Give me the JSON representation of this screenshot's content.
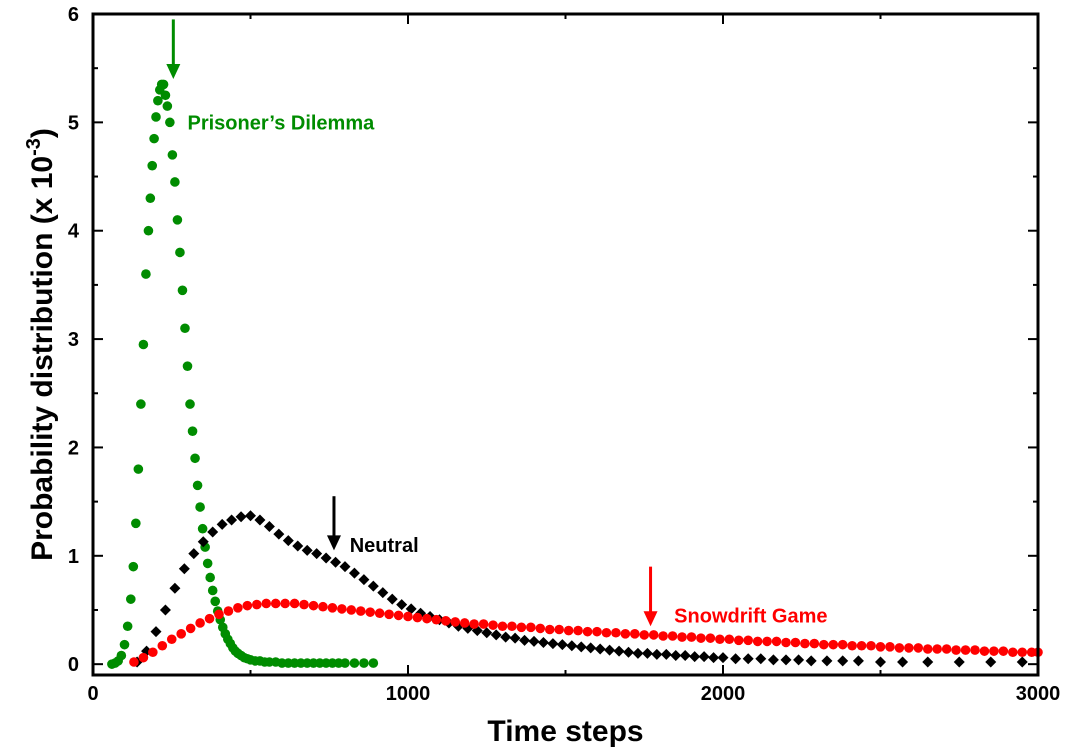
{
  "chart_data": {
    "type": "scatter",
    "title": "",
    "xlabel": "Time steps",
    "ylabel_main": "Probability distribution (x 10",
    "ylabel_exp": "-3",
    "ylabel_close": ")",
    "xlim": [
      0,
      3000
    ],
    "ylim": [
      -0.1,
      6
    ],
    "xticks": [
      0,
      1000,
      2000,
      3000
    ],
    "xtick_labels": [
      "0",
      "1000",
      "2000",
      "3000"
    ],
    "yticks": [
      0,
      1,
      2,
      3,
      4,
      5,
      6
    ],
    "ytick_labels": [
      "0",
      "1",
      "2",
      "3",
      "4",
      "5",
      "6"
    ],
    "grid": false,
    "series": [
      {
        "name": "Prisoner’s Dilemma",
        "marker": "circle",
        "color": "#008c00",
        "points": [
          [
            60,
            0.0
          ],
          [
            70,
            0.01
          ],
          [
            80,
            0.03
          ],
          [
            90,
            0.08
          ],
          [
            100,
            0.18
          ],
          [
            110,
            0.35
          ],
          [
            120,
            0.6
          ],
          [
            128,
            0.9
          ],
          [
            136,
            1.3
          ],
          [
            144,
            1.8
          ],
          [
            152,
            2.4
          ],
          [
            160,
            2.95
          ],
          [
            168,
            3.6
          ],
          [
            176,
            4.0
          ],
          [
            182,
            4.3
          ],
          [
            188,
            4.6
          ],
          [
            194,
            4.85
          ],
          [
            200,
            5.05
          ],
          [
            206,
            5.2
          ],
          [
            212,
            5.3
          ],
          [
            218,
            5.35
          ],
          [
            224,
            5.35
          ],
          [
            230,
            5.25
          ],
          [
            236,
            5.15
          ],
          [
            244,
            5.0
          ],
          [
            252,
            4.7
          ],
          [
            260,
            4.45
          ],
          [
            268,
            4.1
          ],
          [
            276,
            3.8
          ],
          [
            284,
            3.45
          ],
          [
            292,
            3.1
          ],
          [
            300,
            2.75
          ],
          [
            308,
            2.4
          ],
          [
            316,
            2.15
          ],
          [
            324,
            1.9
          ],
          [
            332,
            1.65
          ],
          [
            340,
            1.45
          ],
          [
            348,
            1.25
          ],
          [
            356,
            1.08
          ],
          [
            364,
            0.93
          ],
          [
            372,
            0.8
          ],
          [
            380,
            0.68
          ],
          [
            388,
            0.58
          ],
          [
            396,
            0.49
          ],
          [
            404,
            0.41
          ],
          [
            412,
            0.34
          ],
          [
            420,
            0.28
          ],
          [
            428,
            0.23
          ],
          [
            436,
            0.19
          ],
          [
            444,
            0.15
          ],
          [
            452,
            0.12
          ],
          [
            460,
            0.1
          ],
          [
            470,
            0.08
          ],
          [
            480,
            0.06
          ],
          [
            490,
            0.05
          ],
          [
            500,
            0.04
          ],
          [
            515,
            0.03
          ],
          [
            530,
            0.03
          ],
          [
            545,
            0.02
          ],
          [
            560,
            0.02
          ],
          [
            580,
            0.02
          ],
          [
            600,
            0.01
          ],
          [
            620,
            0.01
          ],
          [
            640,
            0.01
          ],
          [
            660,
            0.01
          ],
          [
            680,
            0.01
          ],
          [
            700,
            0.01
          ],
          [
            720,
            0.01
          ],
          [
            740,
            0.01
          ],
          [
            760,
            0.01
          ],
          [
            780,
            0.01
          ],
          [
            800,
            0.01
          ],
          [
            830,
            0.01
          ],
          [
            860,
            0.01
          ],
          [
            890,
            0.01
          ]
        ]
      },
      {
        "name": "Neutral",
        "marker": "diamond",
        "color": "#000000",
        "points": [
          [
            140,
            0.02
          ],
          [
            170,
            0.12
          ],
          [
            200,
            0.3
          ],
          [
            230,
            0.5
          ],
          [
            260,
            0.7
          ],
          [
            290,
            0.88
          ],
          [
            320,
            1.02
          ],
          [
            350,
            1.13
          ],
          [
            380,
            1.22
          ],
          [
            410,
            1.29
          ],
          [
            440,
            1.33
          ],
          [
            470,
            1.36
          ],
          [
            500,
            1.37
          ],
          [
            530,
            1.33
          ],
          [
            560,
            1.27
          ],
          [
            590,
            1.2
          ],
          [
            620,
            1.14
          ],
          [
            650,
            1.09
          ],
          [
            680,
            1.05
          ],
          [
            710,
            1.02
          ],
          [
            740,
            0.98
          ],
          [
            770,
            0.94
          ],
          [
            800,
            0.9
          ],
          [
            830,
            0.84
          ],
          [
            860,
            0.78
          ],
          [
            890,
            0.72
          ],
          [
            920,
            0.66
          ],
          [
            950,
            0.6
          ],
          [
            980,
            0.55
          ],
          [
            1010,
            0.51
          ],
          [
            1040,
            0.47
          ],
          [
            1070,
            0.44
          ],
          [
            1100,
            0.41
          ],
          [
            1130,
            0.38
          ],
          [
            1160,
            0.35
          ],
          [
            1190,
            0.33
          ],
          [
            1220,
            0.31
          ],
          [
            1250,
            0.29
          ],
          [
            1280,
            0.27
          ],
          [
            1310,
            0.25
          ],
          [
            1340,
            0.24
          ],
          [
            1370,
            0.22
          ],
          [
            1400,
            0.21
          ],
          [
            1430,
            0.2
          ],
          [
            1460,
            0.19
          ],
          [
            1490,
            0.18
          ],
          [
            1520,
            0.17
          ],
          [
            1550,
            0.16
          ],
          [
            1580,
            0.15
          ],
          [
            1610,
            0.14
          ],
          [
            1640,
            0.13
          ],
          [
            1670,
            0.12
          ],
          [
            1700,
            0.11
          ],
          [
            1730,
            0.1
          ],
          [
            1760,
            0.1
          ],
          [
            1790,
            0.09
          ],
          [
            1820,
            0.09
          ],
          [
            1850,
            0.08
          ],
          [
            1880,
            0.08
          ],
          [
            1910,
            0.07
          ],
          [
            1940,
            0.07
          ],
          [
            1970,
            0.06
          ],
          [
            2000,
            0.06
          ],
          [
            2040,
            0.05
          ],
          [
            2080,
            0.05
          ],
          [
            2120,
            0.05
          ],
          [
            2160,
            0.04
          ],
          [
            2200,
            0.04
          ],
          [
            2240,
            0.04
          ],
          [
            2280,
            0.03
          ],
          [
            2330,
            0.03
          ],
          [
            2380,
            0.03
          ],
          [
            2430,
            0.03
          ],
          [
            2500,
            0.02
          ],
          [
            2570,
            0.02
          ],
          [
            2650,
            0.02
          ],
          [
            2750,
            0.02
          ],
          [
            2850,
            0.02
          ],
          [
            2950,
            0.02
          ]
        ]
      },
      {
        "name": "Snowdrift Game",
        "marker": "circle",
        "color": "#ff0000",
        "points": [
          [
            130,
            0.02
          ],
          [
            160,
            0.06
          ],
          [
            190,
            0.11
          ],
          [
            220,
            0.17
          ],
          [
            250,
            0.23
          ],
          [
            280,
            0.28
          ],
          [
            310,
            0.33
          ],
          [
            340,
            0.38
          ],
          [
            370,
            0.42
          ],
          [
            400,
            0.46
          ],
          [
            430,
            0.49
          ],
          [
            460,
            0.52
          ],
          [
            490,
            0.54
          ],
          [
            520,
            0.55
          ],
          [
            550,
            0.56
          ],
          [
            580,
            0.56
          ],
          [
            610,
            0.56
          ],
          [
            640,
            0.56
          ],
          [
            670,
            0.55
          ],
          [
            700,
            0.54
          ],
          [
            730,
            0.53
          ],
          [
            760,
            0.52
          ],
          [
            790,
            0.51
          ],
          [
            820,
            0.5
          ],
          [
            850,
            0.49
          ],
          [
            880,
            0.48
          ],
          [
            910,
            0.47
          ],
          [
            940,
            0.46
          ],
          [
            970,
            0.45
          ],
          [
            1000,
            0.44
          ],
          [
            1030,
            0.43
          ],
          [
            1060,
            0.42
          ],
          [
            1090,
            0.41
          ],
          [
            1120,
            0.4
          ],
          [
            1150,
            0.39
          ],
          [
            1180,
            0.38
          ],
          [
            1210,
            0.37
          ],
          [
            1240,
            0.37
          ],
          [
            1270,
            0.36
          ],
          [
            1300,
            0.35
          ],
          [
            1330,
            0.35
          ],
          [
            1360,
            0.34
          ],
          [
            1390,
            0.34
          ],
          [
            1420,
            0.33
          ],
          [
            1450,
            0.32
          ],
          [
            1480,
            0.32
          ],
          [
            1510,
            0.31
          ],
          [
            1540,
            0.31
          ],
          [
            1570,
            0.3
          ],
          [
            1600,
            0.3
          ],
          [
            1630,
            0.29
          ],
          [
            1660,
            0.29
          ],
          [
            1690,
            0.28
          ],
          [
            1720,
            0.28
          ],
          [
            1750,
            0.27
          ],
          [
            1780,
            0.27
          ],
          [
            1810,
            0.26
          ],
          [
            1840,
            0.26
          ],
          [
            1870,
            0.25
          ],
          [
            1900,
            0.25
          ],
          [
            1930,
            0.24
          ],
          [
            1960,
            0.24
          ],
          [
            1990,
            0.23
          ],
          [
            2020,
            0.23
          ],
          [
            2050,
            0.22
          ],
          [
            2080,
            0.22
          ],
          [
            2110,
            0.21
          ],
          [
            2140,
            0.21
          ],
          [
            2170,
            0.21
          ],
          [
            2200,
            0.2
          ],
          [
            2230,
            0.2
          ],
          [
            2260,
            0.19
          ],
          [
            2290,
            0.19
          ],
          [
            2320,
            0.18
          ],
          [
            2350,
            0.18
          ],
          [
            2380,
            0.18
          ],
          [
            2410,
            0.17
          ],
          [
            2440,
            0.17
          ],
          [
            2470,
            0.17
          ],
          [
            2500,
            0.16
          ],
          [
            2530,
            0.16
          ],
          [
            2560,
            0.15
          ],
          [
            2590,
            0.15
          ],
          [
            2620,
            0.15
          ],
          [
            2650,
            0.14
          ],
          [
            2680,
            0.14
          ],
          [
            2710,
            0.14
          ],
          [
            2740,
            0.13
          ],
          [
            2770,
            0.13
          ],
          [
            2800,
            0.13
          ],
          [
            2830,
            0.12
          ],
          [
            2860,
            0.12
          ],
          [
            2890,
            0.12
          ],
          [
            2920,
            0.11
          ],
          [
            2950,
            0.11
          ],
          [
            2980,
            0.11
          ],
          [
            3000,
            0.11
          ]
        ]
      }
    ],
    "annotations": [
      {
        "text": "Prisoner’s Dilemma",
        "color": "#008c00",
        "label_at": [
          300,
          5.0
        ],
        "arrow_x": 255,
        "arrow_from": 5.95,
        "arrow_to": 5.4
      },
      {
        "text": "Neutral",
        "color": "#000000",
        "label_at": [
          815,
          1.1
        ],
        "arrow_x": 765,
        "arrow_from": 1.55,
        "arrow_to": 1.05
      },
      {
        "text": "Snowdrift Game",
        "color": "#ff0000",
        "label_at": [
          1845,
          0.45
        ],
        "arrow_x": 1770,
        "arrow_from": 0.9,
        "arrow_to": 0.35
      }
    ]
  }
}
